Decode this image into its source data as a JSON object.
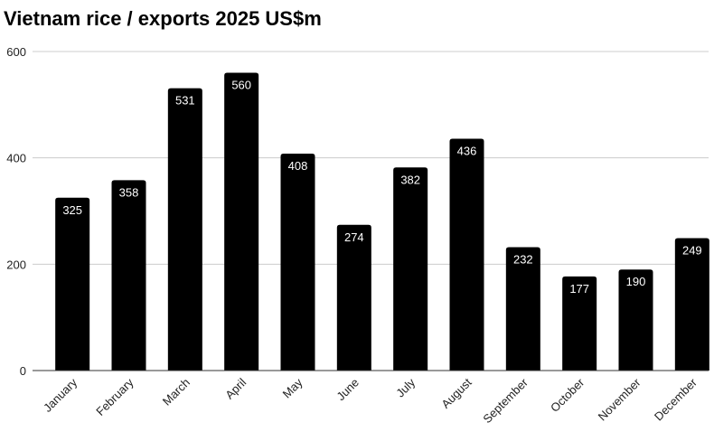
{
  "chart_data": {
    "type": "bar",
    "title": "Vietnam rice / exports 2025 US$m",
    "xlabel": "",
    "ylabel": "",
    "categories": [
      "January",
      "February",
      "March",
      "April",
      "May",
      "June",
      "July",
      "August",
      "September",
      "October",
      "November",
      "December"
    ],
    "values": [
      325,
      358,
      531,
      560,
      408,
      274,
      382,
      436,
      232,
      177,
      190,
      249
    ],
    "ylim": [
      0,
      600
    ],
    "yticks": [
      0,
      200,
      400,
      600
    ],
    "grid": true,
    "legend": "none",
    "bar_color": "#000000",
    "data_label_color": "#ffffff",
    "grid_color": "#cccccc"
  }
}
